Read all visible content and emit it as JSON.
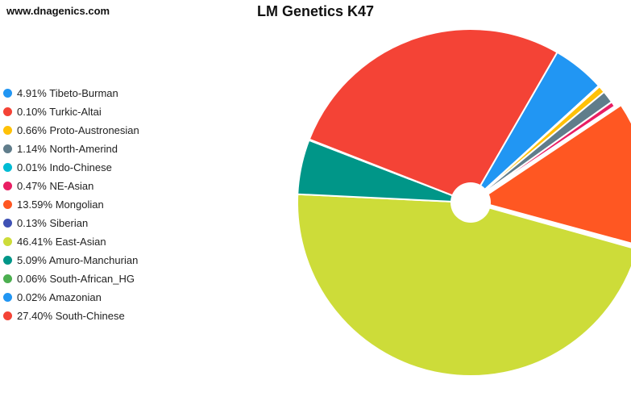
{
  "header": {
    "site": "www.dnagenics.com"
  },
  "chart_data": {
    "type": "pie",
    "title": "LM Genetics K47",
    "legend_position": "left",
    "slices": [
      {
        "label": "4.91% Tibeto-Burman",
        "name": "Tibeto-Burman",
        "value": 4.91,
        "color": "#2196f3"
      },
      {
        "label": "0.10% Turkic-Altai",
        "name": "Turkic-Altai",
        "value": 0.1,
        "color": "#f44336"
      },
      {
        "label": "0.66% Proto-Austronesian",
        "name": "Proto-Austronesian",
        "value": 0.66,
        "color": "#ffc107"
      },
      {
        "label": "1.14% North-Amerind",
        "name": "North-Amerind",
        "value": 1.14,
        "color": "#607d8b"
      },
      {
        "label": "0.01% Indo-Chinese",
        "name": "Indo-Chinese",
        "value": 0.01,
        "color": "#00bcd4"
      },
      {
        "label": "0.47% NE-Asian",
        "name": "NE-Asian",
        "value": 0.47,
        "color": "#e91e63"
      },
      {
        "label": "13.59% Mongolian",
        "name": "Mongolian",
        "value": 13.59,
        "color": "#ff5722"
      },
      {
        "label": "0.13% Siberian",
        "name": "Siberian",
        "value": 0.13,
        "color": "#3f51b5"
      },
      {
        "label": "46.41% East-Asian",
        "name": "East-Asian",
        "value": 46.41,
        "color": "#cddc39"
      },
      {
        "label": "5.09% Amuro-Manchurian",
        "name": "Amuro-Manchurian",
        "value": 5.09,
        "color": "#009688"
      },
      {
        "label": "0.06% South-African_HG",
        "name": "South-African_HG",
        "value": 0.06,
        "color": "#4caf50"
      },
      {
        "label": "0.02% Amazonian",
        "name": "Amazonian",
        "value": 0.02,
        "color": "#2196f3"
      },
      {
        "label": "27.40% South-Chinese",
        "name": "South-Chinese",
        "value": 27.4,
        "color": "#f44336"
      }
    ]
  }
}
